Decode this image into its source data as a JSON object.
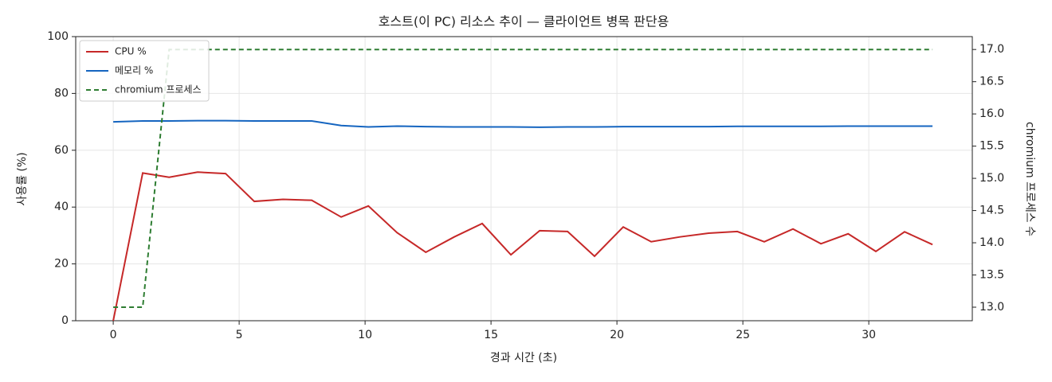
{
  "chart_data": {
    "type": "line",
    "title": "호스트(이 PC) 리소스 추이 — 클라이언트 병목 판단용",
    "xlabel": "경과 시간 (초)",
    "ylabel": "사용률 (%)",
    "y2label": "chromium 프로세스 수",
    "x": [
      0,
      1.17,
      2.22,
      3.35,
      4.46,
      5.6,
      6.74,
      7.88,
      9.05,
      10.13,
      11.27,
      12.41,
      13.54,
      14.65,
      15.79,
      16.93,
      18.04,
      19.11,
      20.25,
      21.36,
      22.5,
      23.64,
      24.78,
      25.85,
      26.99,
      28.1,
      29.18,
      30.28,
      31.42,
      32.53
    ],
    "series": [
      {
        "name": "CPU %",
        "color": "#c62828",
        "dash": false,
        "values": [
          0,
          52,
          50.5,
          52.3,
          51.8,
          42,
          42.7,
          42.4,
          36.5,
          40.4,
          31,
          24.1,
          29.5,
          34.2,
          23.2,
          31.7,
          31.4,
          22.7,
          33,
          27.8,
          29.5,
          30.8,
          31.4,
          27.8,
          32.3,
          27.1,
          30.6,
          24.4,
          31.3,
          26.8
        ]
      },
      {
        "name": "메모리 %",
        "color": "#1565c0",
        "dash": false,
        "values": [
          70,
          70.3,
          70.3,
          70.4,
          70.4,
          70.3,
          70.3,
          70.3,
          68.7,
          68.2,
          68.5,
          68.3,
          68.2,
          68.2,
          68.2,
          68.1,
          68.2,
          68.2,
          68.3,
          68.3,
          68.3,
          68.3,
          68.4,
          68.4,
          68.4,
          68.4,
          68.5,
          68.5,
          68.5,
          68.5
        ]
      },
      {
        "name": "chromium 프로세스",
        "color": "#2e7d32",
        "dash": true,
        "axis": "y2",
        "values": [
          13,
          13,
          17,
          17,
          17,
          17,
          17,
          17,
          17,
          17,
          17,
          17,
          17,
          17,
          17,
          17,
          17,
          17,
          17,
          17,
          17,
          17,
          17,
          17,
          17,
          17,
          17,
          17,
          17,
          17
        ]
      }
    ],
    "xlim": [
      -1.49,
      34.11
    ],
    "xticks": [
      0,
      5,
      10,
      15,
      20,
      25,
      30
    ],
    "ylim": [
      0,
      100
    ],
    "yticks": [
      0,
      20,
      40,
      60,
      80,
      100
    ],
    "y2lim": [
      12.79,
      17.2
    ],
    "y2ticks": [
      {
        "value": 13,
        "label": "13.0"
      },
      {
        "value": 13.5,
        "label": "13.5"
      },
      {
        "value": 14,
        "label": "14.0"
      },
      {
        "value": 14.5,
        "label": "14.5"
      },
      {
        "value": 15,
        "label": "15.0"
      },
      {
        "value": 15.5,
        "label": "15.5"
      },
      {
        "value": 16,
        "label": "16.0"
      },
      {
        "value": 16.5,
        "label": "16.5"
      },
      {
        "value": 17,
        "label": "17.0"
      }
    ],
    "grid": true,
    "legend": "upper-left"
  }
}
